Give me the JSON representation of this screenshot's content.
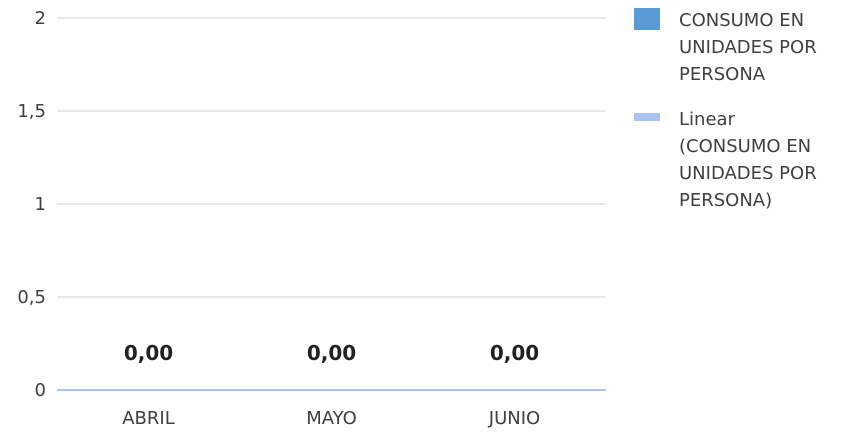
{
  "chart_data": {
    "type": "bar",
    "categories": [
      "ABRIL",
      "MAYO",
      "JUNIO"
    ],
    "series": [
      {
        "name": "CONSUMO EN UNIDADES POR PERSONA",
        "values": [
          0,
          0,
          0
        ],
        "color": "#5b9bd5"
      }
    ],
    "trendline": {
      "name": "Linear (CONSUMO EN UNIDADES POR PERSONA)",
      "type": "linear",
      "color": "#a9c4f0"
    },
    "data_labels": [
      "0,00",
      "0,00",
      "0,00"
    ],
    "ylim": [
      0,
      2
    ],
    "y_ticks": [
      0,
      0.5,
      1,
      1.5,
      2
    ],
    "y_tick_labels": [
      "0",
      "0,5",
      "1",
      "1,5",
      "2"
    ],
    "grid": true,
    "legend": {
      "position": "right",
      "entries": [
        {
          "lines": [
            "CONSUMO EN",
            "UNIDADES POR",
            "PERSONA"
          ],
          "color": "#5b9bd5",
          "marker": "square"
        },
        {
          "lines": [
            "Linear",
            "(CONSUMO EN",
            "UNIDADES POR",
            "PERSONA)"
          ],
          "color": "#a9c4f0",
          "marker": "line"
        }
      ]
    },
    "colors": {
      "grid": "#d0d0d0",
      "axis": "#d0d0d0"
    }
  }
}
